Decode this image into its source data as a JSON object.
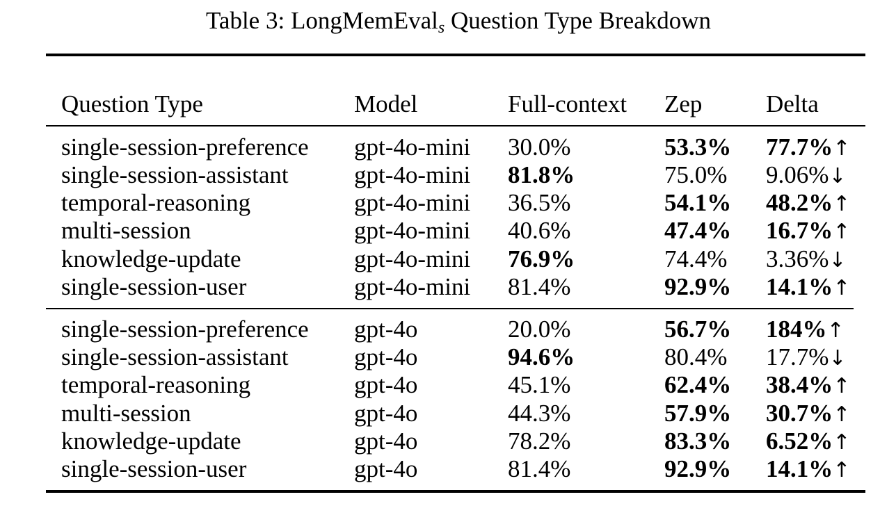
{
  "caption": {
    "prefix": "Table 3: LongMemEval",
    "subscript": "s",
    "suffix": " Question Type Breakdown"
  },
  "headers": {
    "question_type": "Question Type",
    "model": "Model",
    "full_context": "Full-context",
    "zep": "Zep",
    "delta": "Delta"
  },
  "rows": [
    {
      "question_type": "single-session-preference",
      "model": "gpt-4o-mini",
      "full_context": "30.0%",
      "zep": "53.3%",
      "delta": "77.7%",
      "arrow": "↑"
    },
    {
      "question_type": "single-session-assistant",
      "model": "gpt-4o-mini",
      "full_context": "81.8%",
      "zep": "75.0%",
      "delta": "9.06%",
      "arrow": "↓"
    },
    {
      "question_type": "temporal-reasoning",
      "model": "gpt-4o-mini",
      "full_context": "36.5%",
      "zep": "54.1%",
      "delta": "48.2%",
      "arrow": "↑"
    },
    {
      "question_type": "multi-session",
      "model": "gpt-4o-mini",
      "full_context": "40.6%",
      "zep": "47.4%",
      "delta": "16.7%",
      "arrow": "↑"
    },
    {
      "question_type": "knowledge-update",
      "model": "gpt-4o-mini",
      "full_context": "76.9%",
      "zep": "74.4%",
      "delta": "3.36%",
      "arrow": "↓"
    },
    {
      "question_type": "single-session-user",
      "model": "gpt-4o-mini",
      "full_context": "81.4%",
      "zep": "92.9%",
      "delta": "14.1%",
      "arrow": "↑"
    },
    {
      "question_type": "single-session-preference",
      "model": "gpt-4o",
      "full_context": "20.0%",
      "zep": "56.7%",
      "delta": "184%",
      "arrow": "↑"
    },
    {
      "question_type": "single-session-assistant",
      "model": "gpt-4o",
      "full_context": "94.6%",
      "zep": "80.4%",
      "delta": "17.7%",
      "arrow": "↓"
    },
    {
      "question_type": "temporal-reasoning",
      "model": "gpt-4o",
      "full_context": "45.1%",
      "zep": "62.4%",
      "delta": "38.4%",
      "arrow": "↑"
    },
    {
      "question_type": "multi-session",
      "model": "gpt-4o",
      "full_context": "44.3%",
      "zep": "57.9%",
      "delta": "30.7%",
      "arrow": "↑"
    },
    {
      "question_type": "knowledge-update",
      "model": "gpt-4o",
      "full_context": "78.2%",
      "zep": "83.3%",
      "delta": "6.52%",
      "arrow": "↑"
    },
    {
      "question_type": "single-session-user",
      "model": "gpt-4o",
      "full_context": "81.4%",
      "zep": "92.9%",
      "delta": "14.1%",
      "arrow": "↑"
    }
  ]
}
